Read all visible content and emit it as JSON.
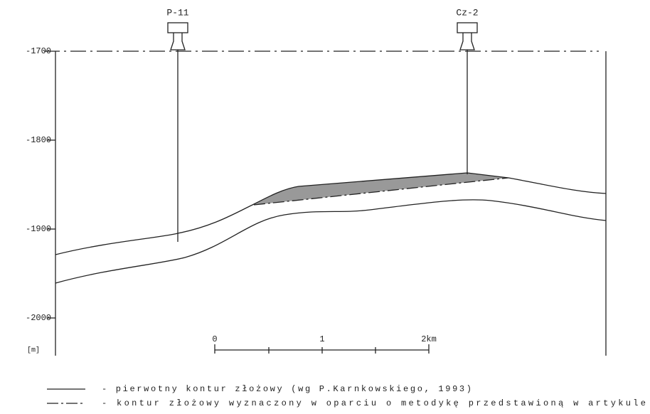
{
  "wells": [
    {
      "label": "P-11"
    },
    {
      "label": "Cz-2"
    }
  ],
  "depth_labels": [
    "-1700",
    "-1800",
    "-1900",
    "-2000"
  ],
  "unit": "[m]",
  "scale_labels": [
    "0",
    "1",
    "2km"
  ],
  "legend": [
    "- pierwotny kontur złożowy (wg P.Karnkowskiego, 1993)",
    "- kontur złożowy wyznaczony w oparciu o metodykę przedstawioną w artykule"
  ]
}
